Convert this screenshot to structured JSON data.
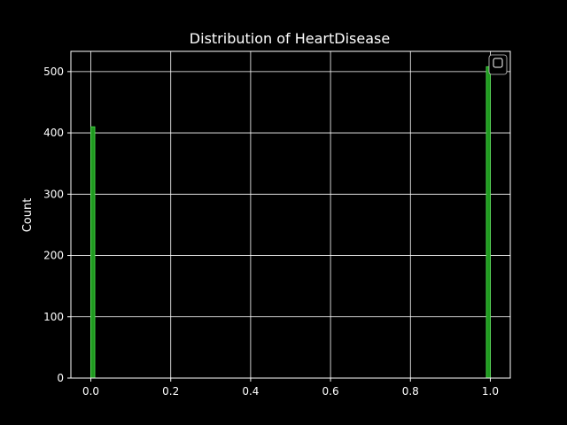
{
  "chart_data": {
    "type": "bar",
    "title": "Distribution of HeartDisease",
    "xlabel": "",
    "ylabel": "Count",
    "bars": [
      {
        "x_start": 0.0,
        "x_end": 0.01,
        "count": 410
      },
      {
        "x_start": 0.99,
        "x_end": 1.0,
        "count": 508
      }
    ],
    "xlim": [
      -0.05,
      1.05
    ],
    "ylim": [
      0,
      533
    ],
    "xticks": [
      0.0,
      0.2,
      0.4,
      0.6,
      0.8,
      1.0
    ],
    "xtick_labels": [
      "0.0",
      "0.2",
      "0.4",
      "0.6",
      "0.8",
      "1.0"
    ],
    "yticks": [
      0,
      100,
      200,
      300,
      400,
      500
    ],
    "ytick_labels": [
      "0",
      "100",
      "200",
      "300",
      "400",
      "500"
    ],
    "grid": true,
    "legend": {
      "placement": "top-right",
      "entries": []
    },
    "colors": {
      "background": "#000000",
      "bar_fill": "#1f9a1f",
      "bar_edge": "#4ee04e",
      "axis": "#ffffff",
      "grid": "#ffffff"
    }
  }
}
